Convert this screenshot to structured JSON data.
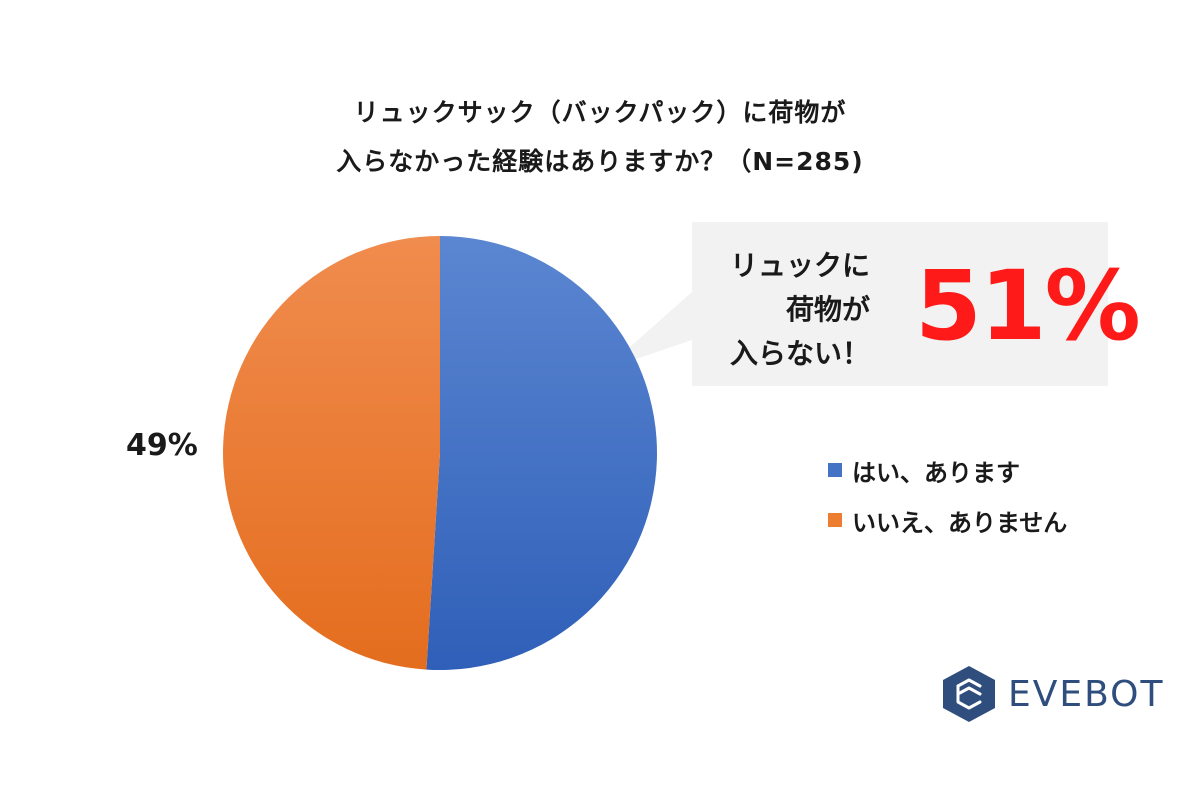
{
  "chart_data": {
    "type": "pie",
    "title_lines": [
      "リュックサック（バックパック）に荷物が",
      "入らなかった経験はありますか？（N=285)"
    ],
    "slices": [
      {
        "label": "はい、あります",
        "value": 51,
        "color": "#4472c4",
        "data_label": ""
      },
      {
        "label": "いいえ、ありません",
        "value": 49,
        "color": "#ed7d31",
        "data_label": "49%"
      }
    ],
    "legend_placement": "right"
  },
  "callout": {
    "lines": [
      "リュックに",
      "荷物が",
      "入らない！"
    ],
    "value": "51%"
  },
  "brand": {
    "name": "EVEBOT",
    "logo_icon": "hexagon-logo-icon",
    "color": "#2f4e7e"
  }
}
